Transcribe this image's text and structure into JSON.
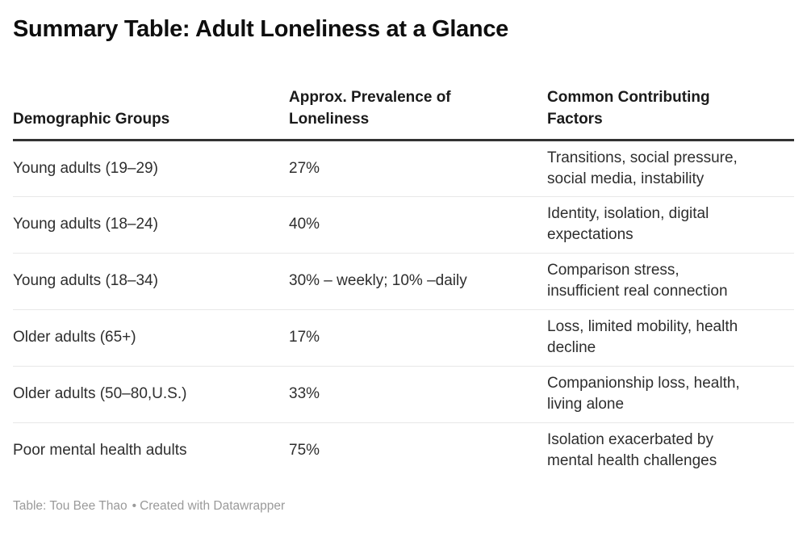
{
  "chart_data": {
    "type": "table",
    "title": "Summary Table: Adult Loneliness at a Glance",
    "columns": [
      "Demographic Groups",
      "Approx. Prevalence of Loneliness",
      "Common Contributing Factors"
    ],
    "rows": [
      [
        "Young adults (19–29)",
        "27%",
        "Transitions, social pressure, social media, instability"
      ],
      [
        "Young adults (18–24)",
        "40%",
        "Identity, isolation, digital expectations"
      ],
      [
        "Young adults (18–34)",
        "30% – weekly; 10% –daily",
        "Comparison stress, insufficient real connection"
      ],
      [
        "Older adults (65+)",
        "17%",
        "Loss, limited mobility, health decline"
      ],
      [
        "Older adults (50–80,U.S.)",
        "33%",
        "Companionship loss, health, living alone"
      ],
      [
        "Poor mental health adults",
        "75%",
        "Isolation exacerbated by mental health challenges"
      ]
    ]
  },
  "display": {
    "header_lines": [
      [
        "Demographic Groups"
      ],
      [
        "Approx. Prevalence of",
        "Loneliness"
      ],
      [
        "Common Contributing",
        "Factors"
      ]
    ],
    "factors_lines": [
      [
        "Transitions, social pressure,",
        "social media, instability"
      ],
      [
        "Identity, isolation, digital",
        "expectations"
      ],
      [
        "Comparison stress,",
        "insufficient real connection"
      ],
      [
        "Loss, limited mobility, health",
        "decline"
      ],
      [
        "Companionship loss, health,",
        "living alone"
      ],
      [
        "Isolation exacerbated by",
        "mental health challenges"
      ]
    ]
  },
  "footer": {
    "attribution": "Table: Tou Bee Thao",
    "separator": "•",
    "credit": "Created with Datawrapper"
  },
  "colors": {
    "title_text": "#0e0e0e",
    "header_text": "#1a1a1a",
    "body_text": "#2e2e2e",
    "header_rule": "#333333",
    "row_divider": "#e8e8e8",
    "footer_text": "#9a9a9a"
  }
}
